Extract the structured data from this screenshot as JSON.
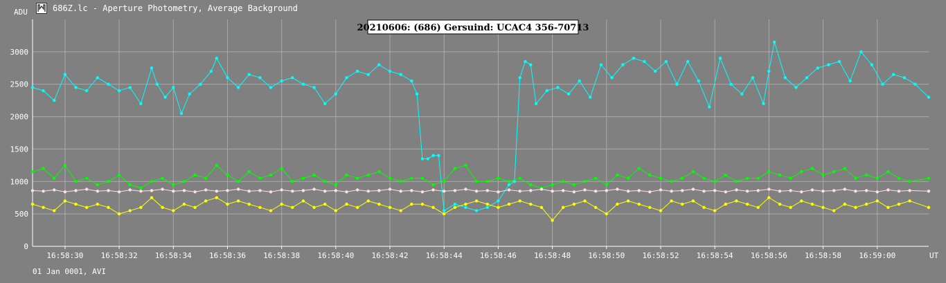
{
  "window": {
    "title": "686Z.lc - Aperture Photometry, Average Background",
    "icon": "lightcurve-app-icon"
  },
  "footer": {
    "text": "01 Jan 0001, AVI"
  },
  "chart_data": {
    "type": "scatter",
    "title": "20210606: (686) Gersuind: UCAC4 356-70713",
    "xlabel": "UT",
    "ylabel": "ADU",
    "x_range": [
      "16:58:28.8",
      "16:59:01.9"
    ],
    "xlim_seconds": [
      28.8,
      61.9
    ],
    "ylim": [
      0,
      3500
    ],
    "yticks": [
      0,
      500,
      1000,
      1500,
      2000,
      2500,
      3000
    ],
    "xtick_labels": [
      "16:58:30",
      "16:58:32",
      "16:58:34",
      "16:58:36",
      "16:58:38",
      "16:58:40",
      "16:58:42",
      "16:58:44",
      "16:58:46",
      "16:58:48",
      "16:58:50",
      "16:58:52",
      "16:58:54",
      "16:58:56",
      "16:58:58",
      "16:59:00"
    ],
    "grid": true,
    "series": [
      {
        "color": "#00ffff",
        "x": [
          28.8,
          29.2,
          29.6,
          30.0,
          30.4,
          30.8,
          31.2,
          31.6,
          32.0,
          32.4,
          32.8,
          33.2,
          33.4,
          33.7,
          34.0,
          34.3,
          34.6,
          35.0,
          35.4,
          35.6,
          36.0,
          36.4,
          36.8,
          37.2,
          37.6,
          38.0,
          38.4,
          38.8,
          39.2,
          39.6,
          40.0,
          40.4,
          40.8,
          41.2,
          41.6,
          42.0,
          42.4,
          42.8,
          43.0,
          43.2,
          43.4,
          43.6,
          43.8,
          44.0,
          44.4,
          44.8,
          45.2,
          45.6,
          46.0,
          46.4,
          46.6,
          46.8,
          47.0,
          47.2,
          47.4,
          47.8,
          48.2,
          48.6,
          49.0,
          49.4,
          49.8,
          50.2,
          50.6,
          51.0,
          51.4,
          51.8,
          52.2,
          52.6,
          53.0,
          53.4,
          53.8,
          54.2,
          54.6,
          55.0,
          55.4,
          55.8,
          56.0,
          56.2,
          56.6,
          57.0,
          57.4,
          57.8,
          58.2,
          58.6,
          59.0,
          59.4,
          59.8,
          60.2,
          60.6,
          61.0,
          61.4,
          61.9
        ],
        "y": [
          2450,
          2400,
          2250,
          2650,
          2450,
          2400,
          2600,
          2500,
          2400,
          2450,
          2200,
          2750,
          2500,
          2300,
          2450,
          2050,
          2350,
          2500,
          2700,
          2900,
          2600,
          2450,
          2650,
          2600,
          2450,
          2550,
          2600,
          2500,
          2450,
          2200,
          2350,
          2600,
          2700,
          2650,
          2800,
          2700,
          2650,
          2550,
          2350,
          1350,
          1350,
          1400,
          1400,
          550,
          650,
          600,
          550,
          600,
          700,
          950,
          1000,
          2600,
          2850,
          2800,
          2200,
          2400,
          2450,
          2350,
          2550,
          2300,
          2800,
          2600,
          2800,
          2900,
          2850,
          2700,
          2850,
          2500,
          2850,
          2550,
          2150,
          2900,
          2500,
          2350,
          2600,
          2200,
          2700,
          3150,
          2600,
          2450,
          2600,
          2750,
          2800,
          2850,
          2550,
          3000,
          2800,
          2500,
          2650,
          2600,
          2500,
          2300
        ]
      },
      {
        "color": "#00ff00",
        "x": [
          28.8,
          29.2,
          29.6,
          30.0,
          30.4,
          30.8,
          31.2,
          31.6,
          32.0,
          32.4,
          32.8,
          33.2,
          33.6,
          34.0,
          34.4,
          34.8,
          35.2,
          35.6,
          36.0,
          36.4,
          36.8,
          37.2,
          37.6,
          38.0,
          38.4,
          38.8,
          39.2,
          39.6,
          40.0,
          40.4,
          40.8,
          41.2,
          41.6,
          42.0,
          42.4,
          42.8,
          43.2,
          43.6,
          44.0,
          44.4,
          44.8,
          45.2,
          45.6,
          46.0,
          46.4,
          46.8,
          47.2,
          47.6,
          48.0,
          48.4,
          48.8,
          49.2,
          49.6,
          50.0,
          50.4,
          50.8,
          51.2,
          51.6,
          52.0,
          52.4,
          52.8,
          53.2,
          53.6,
          54.0,
          54.4,
          54.8,
          55.2,
          55.6,
          56.0,
          56.4,
          56.8,
          57.2,
          57.6,
          58.0,
          58.4,
          58.8,
          59.2,
          59.6,
          60.0,
          60.4,
          60.8,
          61.2,
          61.9
        ],
        "y": [
          1150,
          1200,
          1050,
          1250,
          1000,
          1050,
          950,
          1000,
          1100,
          950,
          900,
          1000,
          1050,
          950,
          1000,
          1100,
          1050,
          1250,
          1100,
          1000,
          1150,
          1050,
          1100,
          1200,
          1000,
          1050,
          1100,
          1000,
          950,
          1100,
          1050,
          1100,
          1150,
          1050,
          1000,
          1050,
          1050,
          950,
          1000,
          1200,
          1250,
          1000,
          1000,
          1050,
          1000,
          1050,
          950,
          900,
          950,
          1000,
          950,
          1000,
          1050,
          950,
          1100,
          1050,
          1200,
          1100,
          1050,
          1000,
          1050,
          1150,
          1050,
          1000,
          1100,
          1000,
          1050,
          1050,
          1150,
          1100,
          1050,
          1150,
          1200,
          1100,
          1150,
          1200,
          1050,
          1100,
          1050,
          1150,
          1050,
          1000,
          1050
        ]
      },
      {
        "color": "#ffe0e0",
        "x": [
          28.8,
          29.2,
          29.6,
          30.0,
          30.4,
          30.8,
          31.2,
          31.6,
          32.0,
          32.4,
          32.8,
          33.2,
          33.6,
          34.0,
          34.4,
          34.8,
          35.2,
          35.6,
          36.0,
          36.4,
          36.8,
          37.2,
          37.6,
          38.0,
          38.4,
          38.8,
          39.2,
          39.6,
          40.0,
          40.4,
          40.8,
          41.2,
          41.6,
          42.0,
          42.4,
          42.8,
          43.2,
          43.6,
          44.0,
          44.4,
          44.8,
          45.2,
          45.6,
          46.0,
          46.4,
          46.8,
          47.2,
          47.6,
          48.0,
          48.4,
          48.8,
          49.2,
          49.6,
          50.0,
          50.4,
          50.8,
          51.2,
          51.6,
          52.0,
          52.4,
          52.8,
          53.2,
          53.6,
          54.0,
          54.4,
          54.8,
          55.2,
          55.6,
          56.0,
          56.4,
          56.8,
          57.2,
          57.6,
          58.0,
          58.4,
          58.8,
          59.2,
          59.6,
          60.0,
          60.4,
          60.8,
          61.2,
          61.9
        ],
        "y": [
          860,
          850,
          870,
          840,
          860,
          880,
          850,
          860,
          840,
          870,
          850,
          860,
          880,
          850,
          860,
          840,
          870,
          850,
          860,
          880,
          850,
          860,
          840,
          870,
          850,
          860,
          880,
          850,
          860,
          840,
          870,
          850,
          860,
          880,
          850,
          860,
          840,
          870,
          850,
          860,
          880,
          850,
          860,
          840,
          870,
          850,
          860,
          880,
          850,
          860,
          840,
          870,
          850,
          860,
          880,
          850,
          860,
          840,
          870,
          850,
          860,
          880,
          850,
          860,
          840,
          870,
          850,
          860,
          880,
          850,
          860,
          840,
          870,
          850,
          860,
          880,
          850,
          860,
          840,
          870,
          850,
          860,
          850
        ]
      },
      {
        "color": "#ffff00",
        "x": [
          28.8,
          29.2,
          29.6,
          30.0,
          30.4,
          30.8,
          31.2,
          31.6,
          32.0,
          32.4,
          32.8,
          33.2,
          33.6,
          34.0,
          34.4,
          34.8,
          35.2,
          35.6,
          36.0,
          36.4,
          36.8,
          37.2,
          37.6,
          38.0,
          38.4,
          38.8,
          39.2,
          39.6,
          40.0,
          40.4,
          40.8,
          41.2,
          41.6,
          42.0,
          42.4,
          42.8,
          43.2,
          43.6,
          44.0,
          44.4,
          44.8,
          45.2,
          45.6,
          46.0,
          46.4,
          46.8,
          47.2,
          47.6,
          48.0,
          48.4,
          48.8,
          49.2,
          49.6,
          50.0,
          50.4,
          50.8,
          51.2,
          51.6,
          52.0,
          52.4,
          52.8,
          53.2,
          53.6,
          54.0,
          54.4,
          54.8,
          55.2,
          55.6,
          56.0,
          56.4,
          56.8,
          57.2,
          57.6,
          58.0,
          58.4,
          58.8,
          59.2,
          59.6,
          60.0,
          60.4,
          60.8,
          61.2,
          61.9
        ],
        "y": [
          650,
          600,
          550,
          700,
          650,
          600,
          650,
          600,
          500,
          550,
          600,
          750,
          600,
          550,
          650,
          600,
          700,
          750,
          650,
          700,
          650,
          600,
          550,
          650,
          600,
          700,
          600,
          650,
          550,
          650,
          600,
          700,
          650,
          600,
          550,
          650,
          650,
          600,
          500,
          600,
          650,
          700,
          650,
          600,
          650,
          700,
          650,
          600,
          400,
          600,
          650,
          700,
          600,
          500,
          650,
          700,
          650,
          600,
          550,
          700,
          650,
          700,
          600,
          550,
          650,
          700,
          650,
          600,
          750,
          650,
          600,
          700,
          650,
          600,
          550,
          650,
          600,
          650,
          700,
          600,
          650,
          700,
          600
        ]
      }
    ]
  }
}
